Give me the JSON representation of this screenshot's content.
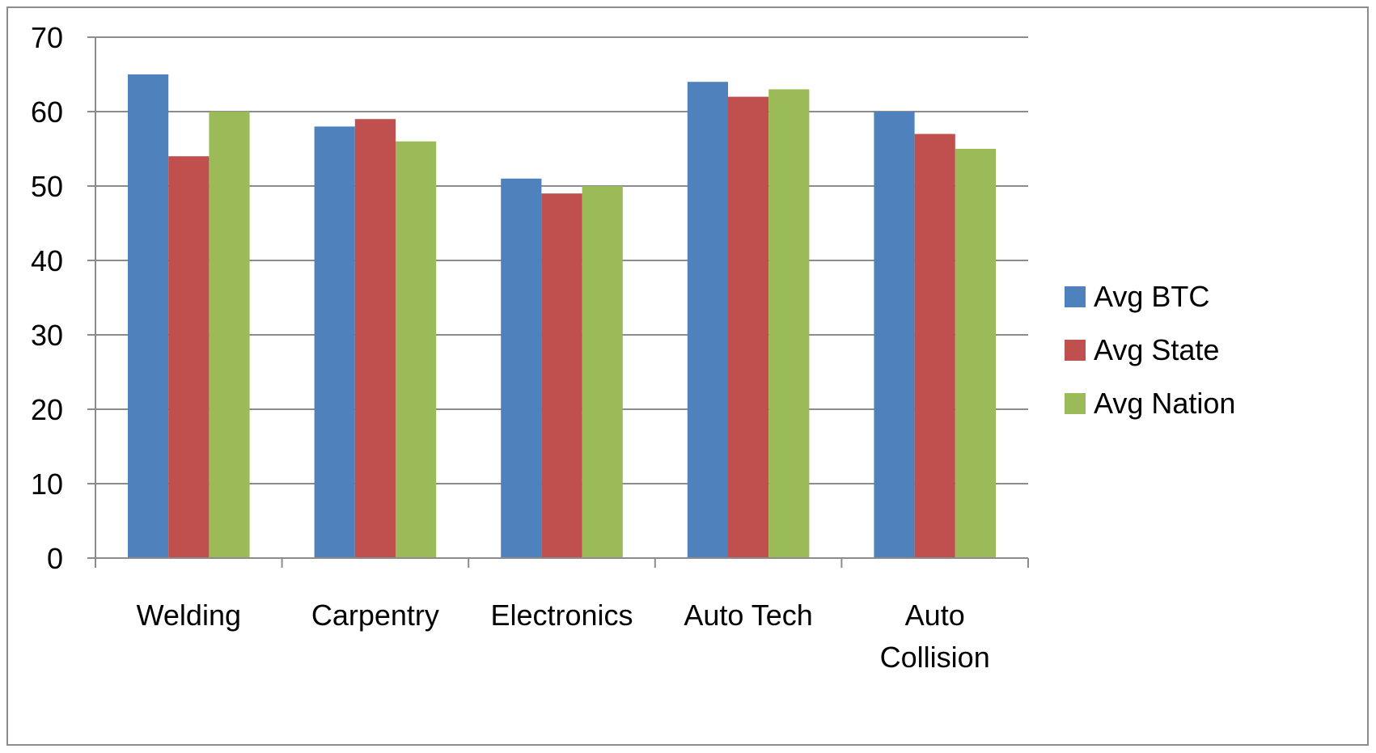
{
  "chart_data": {
    "type": "bar",
    "title": "",
    "xlabel": "",
    "ylabel": "",
    "categories": [
      "Welding",
      "Carpentry",
      "Electronics",
      "Auto Tech",
      "Auto Collision"
    ],
    "category_lines": [
      [
        "Welding"
      ],
      [
        "Carpentry"
      ],
      [
        "Electronics"
      ],
      [
        "Auto Tech"
      ],
      [
        "Auto",
        "Collision"
      ]
    ],
    "series": [
      {
        "name": "Avg BTC",
        "color": "#4f81bd",
        "values": [
          65,
          58,
          51,
          64,
          60
        ]
      },
      {
        "name": "Avg State",
        "color": "#c0504d",
        "values": [
          54,
          59,
          49,
          62,
          57
        ]
      },
      {
        "name": "Avg Nation",
        "color": "#9bbb59",
        "values": [
          60,
          56,
          50,
          63,
          55
        ]
      }
    ],
    "ylim": [
      0,
      70
    ],
    "yticks": [
      "0",
      "10",
      "20",
      "30",
      "40",
      "50",
      "60",
      "70"
    ],
    "grid": true,
    "legend_position": "right",
    "colors": {
      "gridline": "#8c8c8c",
      "axis": "#8c8c8c",
      "frame": "#8c8c8c"
    }
  }
}
